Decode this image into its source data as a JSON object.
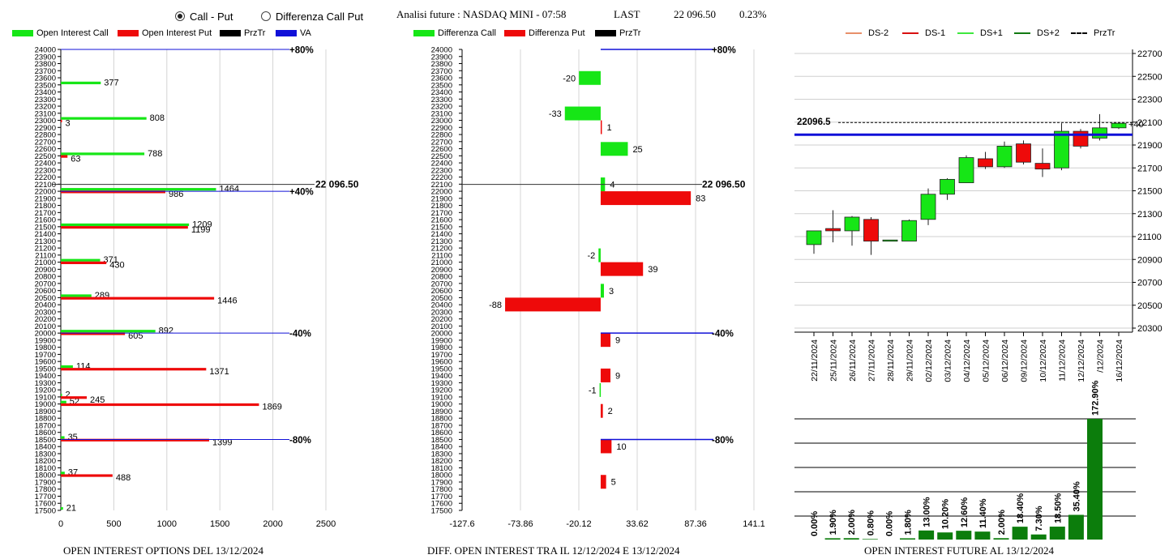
{
  "controls": {
    "option_call_put": "Call - Put",
    "option_diff": "Differenza Call Put"
  },
  "header": {
    "title": "Analisi future : NASDAQ MINI - 07:58",
    "last_label": "LAST",
    "last_value": "22 096.50",
    "change": "0.23%"
  },
  "colors": {
    "green": "#16e616",
    "red": "#ee0a0a",
    "blue": "#1010d8",
    "darkgreen": "#0c7d0c"
  },
  "legend1": [
    {
      "label": "Open Interest Call",
      "color": "#16e616"
    },
    {
      "label": "Open Interest Put",
      "color": "#ee0a0a"
    },
    {
      "label": "PrzTr",
      "color": "#000000"
    },
    {
      "label": "VA",
      "color": "#1010d8"
    }
  ],
  "legend2": [
    {
      "label": "Differenza Call",
      "color": "#16e616"
    },
    {
      "label": "Differenza Put",
      "color": "#ee0a0a"
    },
    {
      "label": "PrzTr",
      "color": "#000000"
    }
  ],
  "legend3": [
    {
      "label": "DS-2",
      "color": "#e8906a",
      "style": "solid"
    },
    {
      "label": "DS-1",
      "color": "#d81010",
      "style": "solid"
    },
    {
      "label": "DS+1",
      "color": "#3ee83e",
      "style": "solid"
    },
    {
      "label": "DS+2",
      "color": "#127a12",
      "style": "solid"
    },
    {
      "label": "PrzTr",
      "color": "#000000",
      "style": "dashed"
    }
  ],
  "footers": {
    "left": "OPEN INTEREST OPTIONS DEL 13/12/2024",
    "middle": "DIFF. OPEN INTEREST TRA IL 12/12/2024 E 13/12/2024",
    "right": "OPEN INTEREST FUTURE AL 13/12/2024"
  },
  "chart_data": [
    {
      "type": "bar",
      "orientation": "horizontal",
      "y_ticks": [
        17500,
        17600,
        17700,
        17800,
        17900,
        18000,
        18100,
        18200,
        18300,
        18400,
        18500,
        18600,
        18700,
        18800,
        18900,
        19000,
        19100,
        19200,
        19300,
        19400,
        19500,
        19600,
        19700,
        19800,
        19900,
        20000,
        20100,
        20200,
        20300,
        20400,
        20500,
        20600,
        20700,
        20800,
        20900,
        21000,
        21100,
        21200,
        21300,
        21400,
        21500,
        21600,
        21700,
        21800,
        21900,
        22000,
        22100,
        22200,
        22300,
        22400,
        22500,
        22600,
        22700,
        22800,
        22900,
        23000,
        23100,
        23200,
        23300,
        23400,
        23500,
        23600,
        23700,
        23800,
        23900,
        24000
      ],
      "ylim": [
        17500,
        24000
      ],
      "x_ticks": [
        0,
        500,
        1000,
        1500,
        2000,
        2500
      ],
      "xlim": [
        0,
        2500
      ],
      "series": [
        {
          "name": "Open Interest Call",
          "points": [
            {
              "strike": 23500,
              "value": 377
            },
            {
              "strike": 23000,
              "value": 808
            },
            {
              "strike": 22500,
              "value": 788
            },
            {
              "strike": 22000,
              "value": 1464
            },
            {
              "strike": 21500,
              "value": 1209
            },
            {
              "strike": 21000,
              "value": 371
            },
            {
              "strike": 20500,
              "value": 289
            },
            {
              "strike": 20000,
              "value": 892
            },
            {
              "strike": 19500,
              "value": 114
            },
            {
              "strike": 19100,
              "value": 2
            },
            {
              "strike": 19000,
              "value": 52
            },
            {
              "strike": 18500,
              "value": 35
            },
            {
              "strike": 18000,
              "value": 37
            },
            {
              "strike": 17500,
              "value": 21
            }
          ]
        },
        {
          "name": "Open Interest Put",
          "points": [
            {
              "strike": 23000,
              "value": 3
            },
            {
              "strike": 22500,
              "value": 63
            },
            {
              "strike": 22000,
              "value": 986
            },
            {
              "strike": 21500,
              "value": 1199
            },
            {
              "strike": 21000,
              "value": 430
            },
            {
              "strike": 20500,
              "value": 1446
            },
            {
              "strike": 20000,
              "value": 605
            },
            {
              "strike": 19500,
              "value": 1371
            },
            {
              "strike": 19100,
              "value": 245
            },
            {
              "strike": 19000,
              "value": 1869
            },
            {
              "strike": 18500,
              "value": 1399
            },
            {
              "strike": 18000,
              "value": 488
            }
          ]
        }
      ],
      "price_line": {
        "value": 22096.5,
        "label": "22 096.50"
      },
      "va_lines": [
        {
          "value": 24000,
          "label": "+80%"
        },
        {
          "value": 22000,
          "label": "+40%"
        },
        {
          "value": 20000,
          "label": "-40%"
        },
        {
          "value": 18500,
          "label": "-80%"
        }
      ]
    },
    {
      "type": "bar",
      "orientation": "horizontal",
      "y_ticks": [
        17500,
        17600,
        17700,
        17800,
        17900,
        18000,
        18100,
        18200,
        18300,
        18400,
        18500,
        18600,
        18700,
        18800,
        18900,
        19000,
        19100,
        19200,
        19300,
        19400,
        19500,
        19600,
        19700,
        19800,
        19900,
        20000,
        20100,
        20200,
        20300,
        20400,
        20500,
        20600,
        20700,
        20800,
        20900,
        21000,
        21100,
        21200,
        21300,
        21400,
        21500,
        21600,
        21700,
        21800,
        21900,
        22000,
        22100,
        22200,
        22300,
        22400,
        22500,
        22600,
        22700,
        22800,
        22900,
        23000,
        23100,
        23200,
        23300,
        23400,
        23500,
        23600,
        23700,
        23800,
        23900,
        24000
      ],
      "ylim": [
        17500,
        24000
      ],
      "x_ticks": [
        "-127.6",
        "-73.86",
        "-20.12",
        "33.62",
        "87.36",
        "141.1"
      ],
      "xlim": [
        -127.6,
        141.1
      ],
      "series": [
        {
          "name": "Differenza Call",
          "points": [
            {
              "strike": 23500,
              "value": -20
            },
            {
              "strike": 23000,
              "value": -33
            },
            {
              "strike": 22500,
              "value": 25
            },
            {
              "strike": 22000,
              "value": 4
            },
            {
              "strike": 21000,
              "value": -2
            },
            {
              "strike": 20500,
              "value": 3
            },
            {
              "strike": 19100,
              "value": -1
            }
          ]
        },
        {
          "name": "Differenza Put",
          "points": [
            {
              "strike": 23000,
              "value": 1
            },
            {
              "strike": 22000,
              "value": 83
            },
            {
              "strike": 21000,
              "value": 39
            },
            {
              "strike": 20500,
              "value": -88
            },
            {
              "strike": 20000,
              "value": 9
            },
            {
              "strike": 19500,
              "value": 9
            },
            {
              "strike": 19000,
              "value": 2
            },
            {
              "strike": 18500,
              "value": 10
            },
            {
              "strike": 18000,
              "value": 5
            }
          ]
        }
      ],
      "price_line": {
        "value": 22096.5,
        "label": "22 096.50"
      },
      "va_lines": [
        {
          "value": 24000,
          "label": "+80%"
        },
        {
          "value": 20000,
          "label": "-40%"
        },
        {
          "value": 18500,
          "label": "-80%"
        }
      ]
    },
    {
      "type": "candlestick",
      "y_ticks": [
        20300,
        20500,
        20700,
        20900,
        21100,
        21300,
        21500,
        21700,
        21900,
        22100,
        22300,
        22500,
        22700
      ],
      "ylim": [
        20300,
        22700
      ],
      "dates": [
        "22/11/2024",
        "25/11/2024",
        "26/11/2024",
        "27/11/2024",
        "28/11/2024",
        "29/11/2024",
        "02/12/2024",
        "03/12/2024",
        "04/12/2024",
        "05/12/2024",
        "06/12/2024",
        "09/12/2024",
        "10/12/2024",
        "11/12/2024",
        "12/12/2024",
        "/12/2024",
        "16/12/2024"
      ],
      "candles": [
        {
          "open": 21030,
          "close": 21150,
          "high": 21150,
          "low": 20950
        },
        {
          "open": 21170,
          "close": 21150,
          "high": 21330,
          "low": 21050
        },
        {
          "open": 21150,
          "close": 21270,
          "high": 21280,
          "low": 21020
        },
        {
          "open": 21250,
          "close": 21060,
          "high": 21270,
          "low": 20940
        },
        {
          "open": 21070,
          "close": 21070,
          "high": 21070,
          "low": 21070
        },
        {
          "open": 21060,
          "close": 21240,
          "high": 21250,
          "low": 21060
        },
        {
          "open": 21250,
          "close": 21470,
          "high": 21520,
          "low": 21200
        },
        {
          "open": 21470,
          "close": 21600,
          "high": 21610,
          "low": 21420
        },
        {
          "open": 21570,
          "close": 21790,
          "high": 21810,
          "low": 21570
        },
        {
          "open": 21780,
          "close": 21710,
          "high": 21840,
          "low": 21690
        },
        {
          "open": 21710,
          "close": 21890,
          "high": 21930,
          "low": 21700
        },
        {
          "open": 21910,
          "close": 21750,
          "high": 21940,
          "low": 21730
        },
        {
          "open": 21740,
          "close": 21690,
          "high": 21870,
          "low": 21620
        },
        {
          "open": 21700,
          "close": 22020,
          "high": 22090,
          "low": 21680
        },
        {
          "open": 22020,
          "close": 21890,
          "high": 22040,
          "low": 21870
        },
        {
          "open": 21960,
          "close": 22050,
          "high": 22170,
          "low": 21940
        },
        {
          "open": 22050,
          "close": 22090,
          "high": 22100,
          "low": 22040
        }
      ],
      "price_line": {
        "value": 22096.5,
        "label": "22096.5"
      },
      "blue_line": 21990,
      "last_label": "+40"
    },
    {
      "type": "bar",
      "values": [
        0.0,
        1.9,
        2.0,
        0.8,
        0.0,
        1.8,
        13.0,
        10.2,
        12.6,
        11.4,
        2.0,
        18.4,
        7.3,
        18.5,
        35.4,
        172.9
      ],
      "labels": [
        "0.00%",
        "1.90%",
        "2.00%",
        "0.80%",
        "0.00%",
        "1.80%",
        "13.00%",
        "10.20%",
        "12.60%",
        "11.40%",
        "2.00%",
        "18.40%",
        "7.30%",
        "18.50%",
        "35.40%",
        "172.90%"
      ],
      "ylim": [
        0,
        172.9
      ]
    }
  ]
}
